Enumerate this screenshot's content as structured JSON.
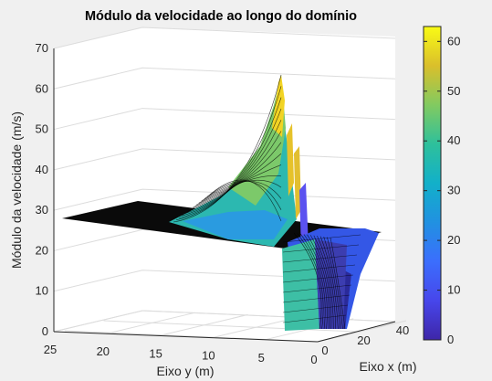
{
  "chart_data": {
    "type": "surface",
    "title": "Módulo da velocidade ao longo do domínio",
    "xlabel": "Eixo x (m)",
    "ylabel": "Eixo y (m)",
    "zlabel": "Módulo da velocidade (m/s)",
    "x_ticks": [
      "0",
      "20",
      "40"
    ],
    "y_ticks": [
      "0",
      "5",
      "10",
      "15",
      "20",
      "25"
    ],
    "z_ticks": [
      "0",
      "10",
      "20",
      "30",
      "40",
      "50",
      "60",
      "70"
    ],
    "xlim": [
      0,
      40
    ],
    "ylim": [
      0,
      25
    ],
    "zlim": [
      0,
      70
    ],
    "grid": true,
    "colormap": "parula",
    "colorbar": {
      "ticks": [
        "0",
        "10",
        "20",
        "30",
        "40",
        "50",
        "60"
      ],
      "range": [
        0,
        63
      ],
      "placement": "right"
    },
    "surface_description": {
      "far_field_speed": 28,
      "peak_speed": 63,
      "peak_location": {
        "x": 18,
        "y": 4
      },
      "min_speed": 0
    },
    "colors": {
      "background": "#f0f0f0",
      "axes_face": "#ffffff",
      "edge": "#000000"
    }
  }
}
